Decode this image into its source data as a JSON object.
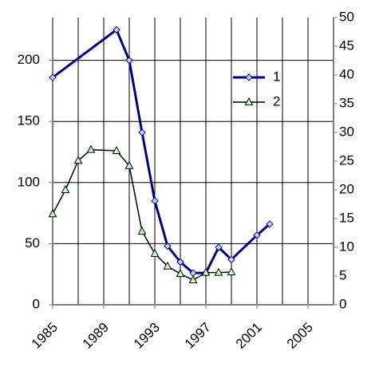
{
  "chart_data": {
    "type": "line",
    "xlim": [
      1985,
      2007
    ],
    "xticks": [
      1985,
      1989,
      1993,
      1997,
      2001,
      2005
    ],
    "xminorticks": [
      1987,
      1991,
      1995,
      1999,
      2003,
      2007
    ],
    "ylim": [
      0,
      235
    ],
    "yticks": [
      0,
      50,
      100,
      150,
      200
    ],
    "y2lim": [
      0,
      50
    ],
    "y2ticks": [
      0,
      5,
      10,
      15,
      20,
      25,
      30,
      35,
      40,
      45,
      50
    ],
    "grid": true,
    "legend": "upper-right",
    "series": [
      {
        "name": "1",
        "color": "#000080",
        "marker": "diamond",
        "marker_fill": "#ccccff",
        "x": [
          1985,
          1990,
          1991,
          1992,
          1993,
          1994,
          1995,
          1996,
          1997,
          1998,
          1999,
          2001,
          2002
        ],
        "values": [
          186,
          225,
          200,
          141,
          85,
          48,
          35,
          26,
          26,
          47,
          37,
          57,
          66
        ]
      },
      {
        "name": "2",
        "color": "#000000",
        "marker": "triangle",
        "marker_fill": "#ccffcc",
        "axis": "y2",
        "x": [
          1985,
          1986,
          1987,
          1988,
          1990,
          1991,
          1992,
          1993,
          1994,
          1995,
          1996,
          1997,
          1998,
          1999
        ],
        "values": [
          15.8,
          20,
          25.1,
          27,
          26.8,
          24.2,
          12.8,
          8.9,
          6.7,
          5.4,
          4.3,
          5.6,
          5.6,
          5.7
        ]
      }
    ]
  }
}
